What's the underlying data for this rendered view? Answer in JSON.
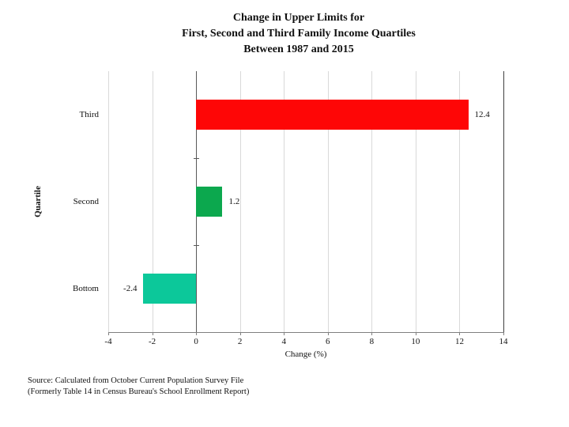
{
  "slide": {
    "title_lines": [
      "Change in Upper Limits for",
      "First, Second and Third Family Income Quartiles",
      "Between 1987 and 2015"
    ],
    "source_lines": [
      "Source: Calculated from October Current Population Survey File",
      "(Formerly Table 14 in Census Bureau's School Enrollment Report)"
    ]
  },
  "chart_data": {
    "type": "bar",
    "orientation": "horizontal",
    "title": "Change in Upper Limits for First, Second and Third Family Income Quartiles Between 1987 and 2015",
    "categories": [
      "Third",
      "Second",
      "Bottom"
    ],
    "values": [
      12.4,
      1.2,
      -2.4
    ],
    "data_labels": [
      "12.4",
      "1.2",
      "-2.4"
    ],
    "bar_colors": [
      "#fe0606",
      "#0ca84e",
      "#0cc89a"
    ],
    "xlabel": "Change (%)",
    "ylabel": "Quartile",
    "xlim": [
      -4,
      14
    ],
    "xticks": [
      -4,
      -2,
      0,
      2,
      4,
      6,
      8,
      10,
      12,
      14
    ],
    "grid": true,
    "legend": false,
    "gridline_color": "#d9d9d9",
    "zero_line_color": "#595959",
    "plot_right_border_color": "#404040",
    "axis_color": "#7f7f7f",
    "text_color": "#111111"
  }
}
